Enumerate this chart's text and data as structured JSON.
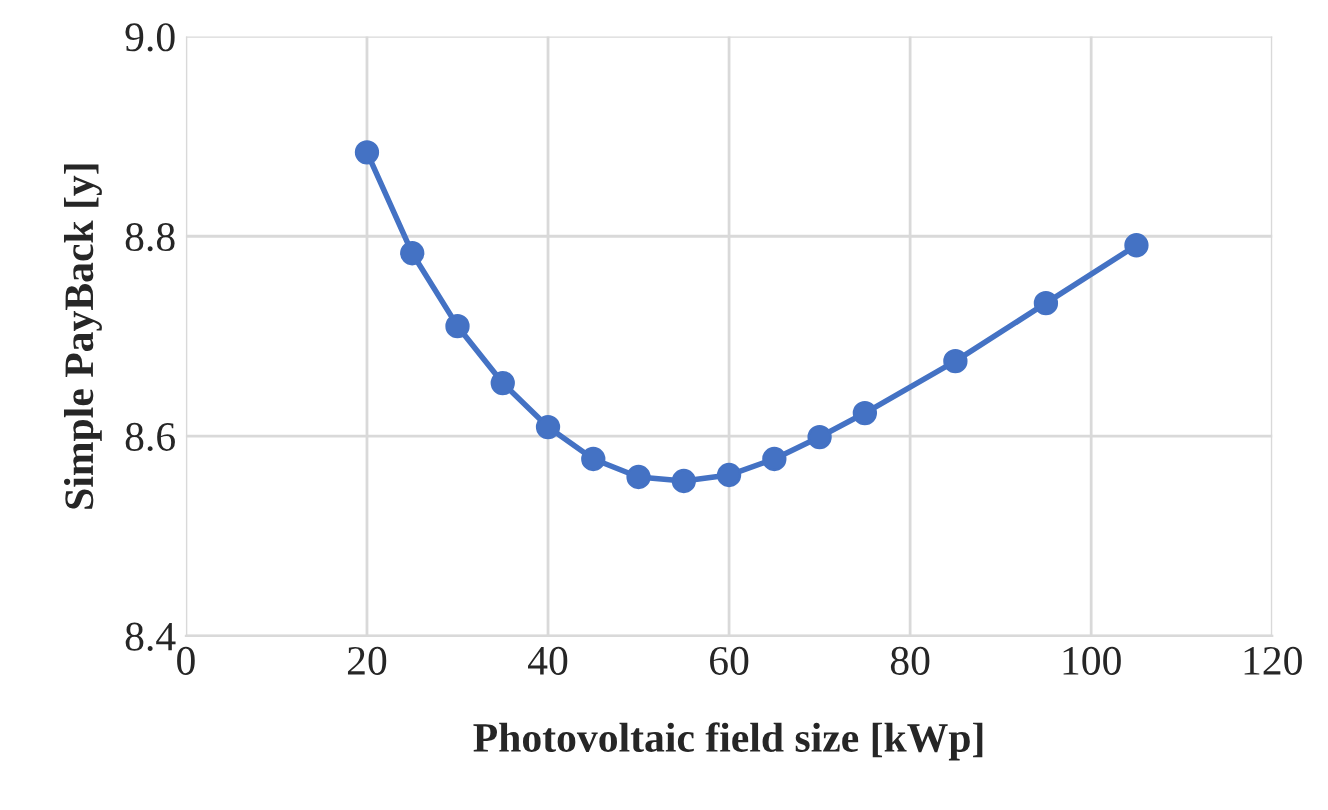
{
  "chart_data": {
    "type": "line",
    "xlabel": "Photovoltaic field size [kWp]",
    "ylabel": "Simple PayBack [y]",
    "x": [
      20,
      25,
      30,
      35,
      40,
      45,
      50,
      55,
      60,
      65,
      70,
      75,
      85,
      95,
      105
    ],
    "series": [
      {
        "color": "#4472c4",
        "values": [
          8.884,
          8.783,
          8.71,
          8.653,
          8.609,
          8.577,
          8.559,
          8.555,
          8.561,
          8.577,
          8.599,
          8.623,
          8.675,
          8.733,
          8.791
        ]
      }
    ],
    "xlim": [
      0,
      120
    ],
    "xticks": [
      0,
      20,
      40,
      60,
      80,
      100,
      120
    ],
    "ylim": [
      8.4,
      9.0
    ],
    "yticks": [
      {
        "value": 8.4,
        "label": "8.4"
      },
      {
        "value": 8.6,
        "label": "8.6"
      },
      {
        "value": 8.8,
        "label": "8.8"
      },
      {
        "value": 9.0,
        "label": "9.0"
      }
    ],
    "grid": true,
    "marker": "circle",
    "line_style": "solid"
  }
}
